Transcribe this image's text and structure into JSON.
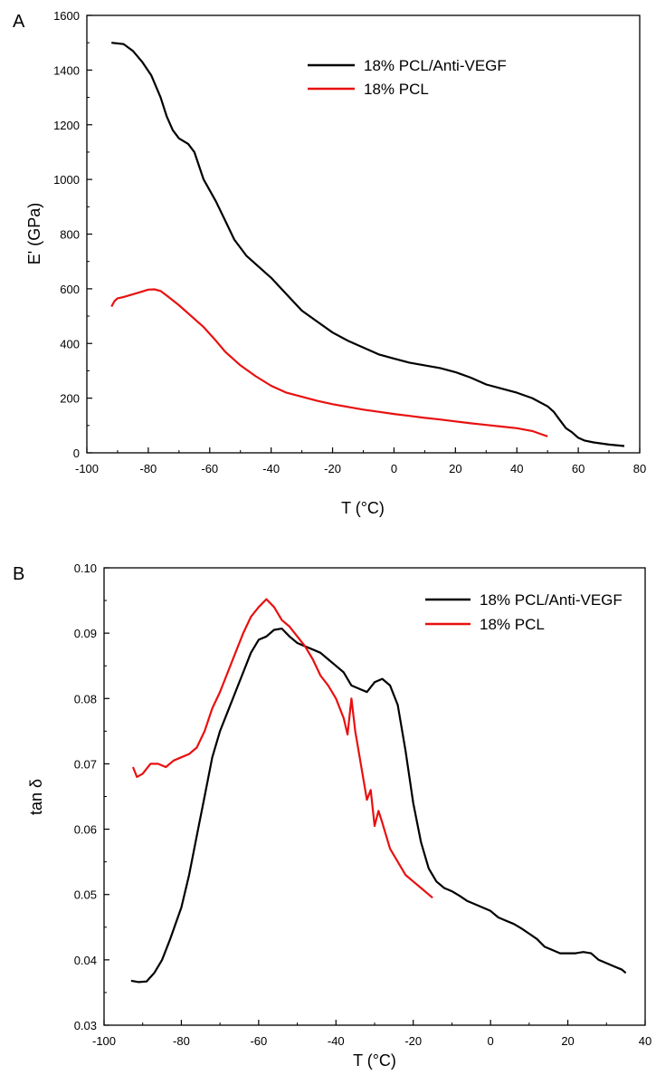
{
  "chart_data": [
    {
      "type": "line",
      "panel_label": "A",
      "xlabel": "T (°C)",
      "ylabel": "E' (GPa)",
      "xlim": [
        -100,
        80
      ],
      "ylim": [
        0,
        1600
      ],
      "xticks": [
        -100,
        -80,
        -60,
        -40,
        -20,
        0,
        20,
        40,
        60,
        80
      ],
      "yticks": [
        0,
        200,
        400,
        600,
        800,
        1000,
        1200,
        1400,
        1600
      ],
      "legend_position": "top-right",
      "series": [
        {
          "name": "18% PCL/Anti-VEGF",
          "color": "#000000",
          "x": [
            -92,
            -88,
            -85,
            -82,
            -79,
            -76,
            -74,
            -72,
            -70,
            -67,
            -65,
            -62,
            -58,
            -55,
            -52,
            -48,
            -44,
            -40,
            -35,
            -30,
            -25,
            -20,
            -15,
            -10,
            -5,
            0,
            5,
            10,
            15,
            20,
            25,
            30,
            35,
            40,
            45,
            50,
            52,
            54,
            56,
            58,
            60,
            62,
            65,
            70,
            75
          ],
          "y": [
            1500,
            1495,
            1470,
            1430,
            1380,
            1300,
            1230,
            1180,
            1150,
            1130,
            1100,
            1000,
            920,
            850,
            780,
            720,
            680,
            640,
            580,
            520,
            480,
            440,
            410,
            385,
            360,
            345,
            330,
            320,
            310,
            295,
            275,
            250,
            235,
            220,
            200,
            170,
            150,
            120,
            90,
            75,
            55,
            45,
            38,
            30,
            25
          ]
        },
        {
          "name": "18% PCL",
          "color": "#e81010",
          "x": [
            -92,
            -91,
            -90,
            -88,
            -85,
            -82,
            -80,
            -78,
            -76,
            -74,
            -70,
            -66,
            -62,
            -58,
            -55,
            -50,
            -45,
            -40,
            -35,
            -30,
            -25,
            -20,
            -15,
            -10,
            -5,
            0,
            5,
            10,
            15,
            20,
            25,
            30,
            35,
            40,
            45,
            48,
            50
          ],
          "y": [
            535,
            555,
            565,
            570,
            580,
            590,
            597,
            598,
            592,
            575,
            540,
            500,
            460,
            410,
            370,
            320,
            280,
            245,
            220,
            205,
            190,
            178,
            168,
            158,
            150,
            142,
            135,
            128,
            122,
            115,
            108,
            102,
            96,
            90,
            80,
            68,
            60
          ]
        }
      ]
    },
    {
      "type": "line",
      "panel_label": "B",
      "xlabel": "T (°C)",
      "ylabel": "tan δ",
      "xlim": [
        -100,
        40
      ],
      "ylim": [
        0.03,
        0.1
      ],
      "xticks": [
        -100,
        -80,
        -60,
        -40,
        -20,
        0,
        20,
        40
      ],
      "yticks": [
        0.03,
        0.04,
        0.05,
        0.06,
        0.07,
        0.08,
        0.09,
        0.1
      ],
      "yticklabels": [
        "0.03",
        "0.04",
        "0.05",
        "0.06",
        "0.07",
        "0.08",
        "0.09",
        "0.10"
      ],
      "legend_position": "top-right",
      "series": [
        {
          "name": "18% PCL/Anti-VEGF",
          "color": "#000000",
          "x": [
            -93,
            -91,
            -89,
            -87,
            -85,
            -83,
            -80,
            -78,
            -76,
            -74,
            -72,
            -70,
            -68,
            -66,
            -64,
            -62,
            -60,
            -58,
            -56,
            -54,
            -52,
            -50,
            -48,
            -46,
            -44,
            -42,
            -40,
            -38,
            -36,
            -34,
            -32,
            -30,
            -28,
            -26,
            -24,
            -22,
            -20,
            -18,
            -16,
            -14,
            -12,
            -10,
            -8,
            -6,
            -4,
            -2,
            0,
            2,
            4,
            6,
            8,
            10,
            12,
            14,
            16,
            18,
            20,
            22,
            24,
            26,
            28,
            30,
            32,
            34,
            35
          ],
          "y": [
            0.0368,
            0.0366,
            0.0367,
            0.038,
            0.04,
            0.043,
            0.048,
            0.053,
            0.059,
            0.065,
            0.071,
            0.075,
            0.078,
            0.081,
            0.084,
            0.087,
            0.089,
            0.0895,
            0.0905,
            0.0907,
            0.0895,
            0.0885,
            0.088,
            0.0875,
            0.087,
            0.086,
            0.085,
            0.084,
            0.082,
            0.0815,
            0.081,
            0.0825,
            0.083,
            0.082,
            0.079,
            0.072,
            0.064,
            0.058,
            0.054,
            0.052,
            0.051,
            0.0505,
            0.0498,
            0.049,
            0.0485,
            0.048,
            0.0475,
            0.0465,
            0.046,
            0.0455,
            0.0448,
            0.044,
            0.0432,
            0.042,
            0.0415,
            0.041,
            0.041,
            0.041,
            0.0412,
            0.041,
            0.04,
            0.0395,
            0.039,
            0.0385,
            0.038
          ]
        },
        {
          "name": "18% PCL",
          "color": "#e81010",
          "x": [
            -92.5,
            -91.5,
            -90,
            -88,
            -86,
            -84,
            -82,
            -80,
            -78,
            -76,
            -74,
            -72,
            -70,
            -68,
            -66,
            -64,
            -62,
            -60,
            -58,
            -56,
            -54,
            -52,
            -50,
            -48,
            -46,
            -44,
            -42,
            -40,
            -38,
            -37,
            -36,
            -35,
            -34,
            -33,
            -32,
            -31,
            -30,
            -29,
            -28,
            -27,
            -26,
            -24,
            -22,
            -20,
            -18,
            -16,
            -15
          ],
          "y": [
            0.0695,
            0.068,
            0.0685,
            0.07,
            0.07,
            0.0695,
            0.0705,
            0.071,
            0.0715,
            0.0725,
            0.075,
            0.0785,
            0.081,
            0.084,
            0.087,
            0.09,
            0.0925,
            0.094,
            0.0952,
            0.094,
            0.092,
            0.091,
            0.0895,
            0.088,
            0.086,
            0.0835,
            0.082,
            0.08,
            0.077,
            0.0745,
            0.08,
            0.075,
            0.0715,
            0.068,
            0.0645,
            0.066,
            0.0605,
            0.0628,
            0.061,
            0.059,
            0.057,
            0.055,
            0.053,
            0.052,
            0.051,
            0.05,
            0.0495
          ]
        }
      ]
    }
  ]
}
